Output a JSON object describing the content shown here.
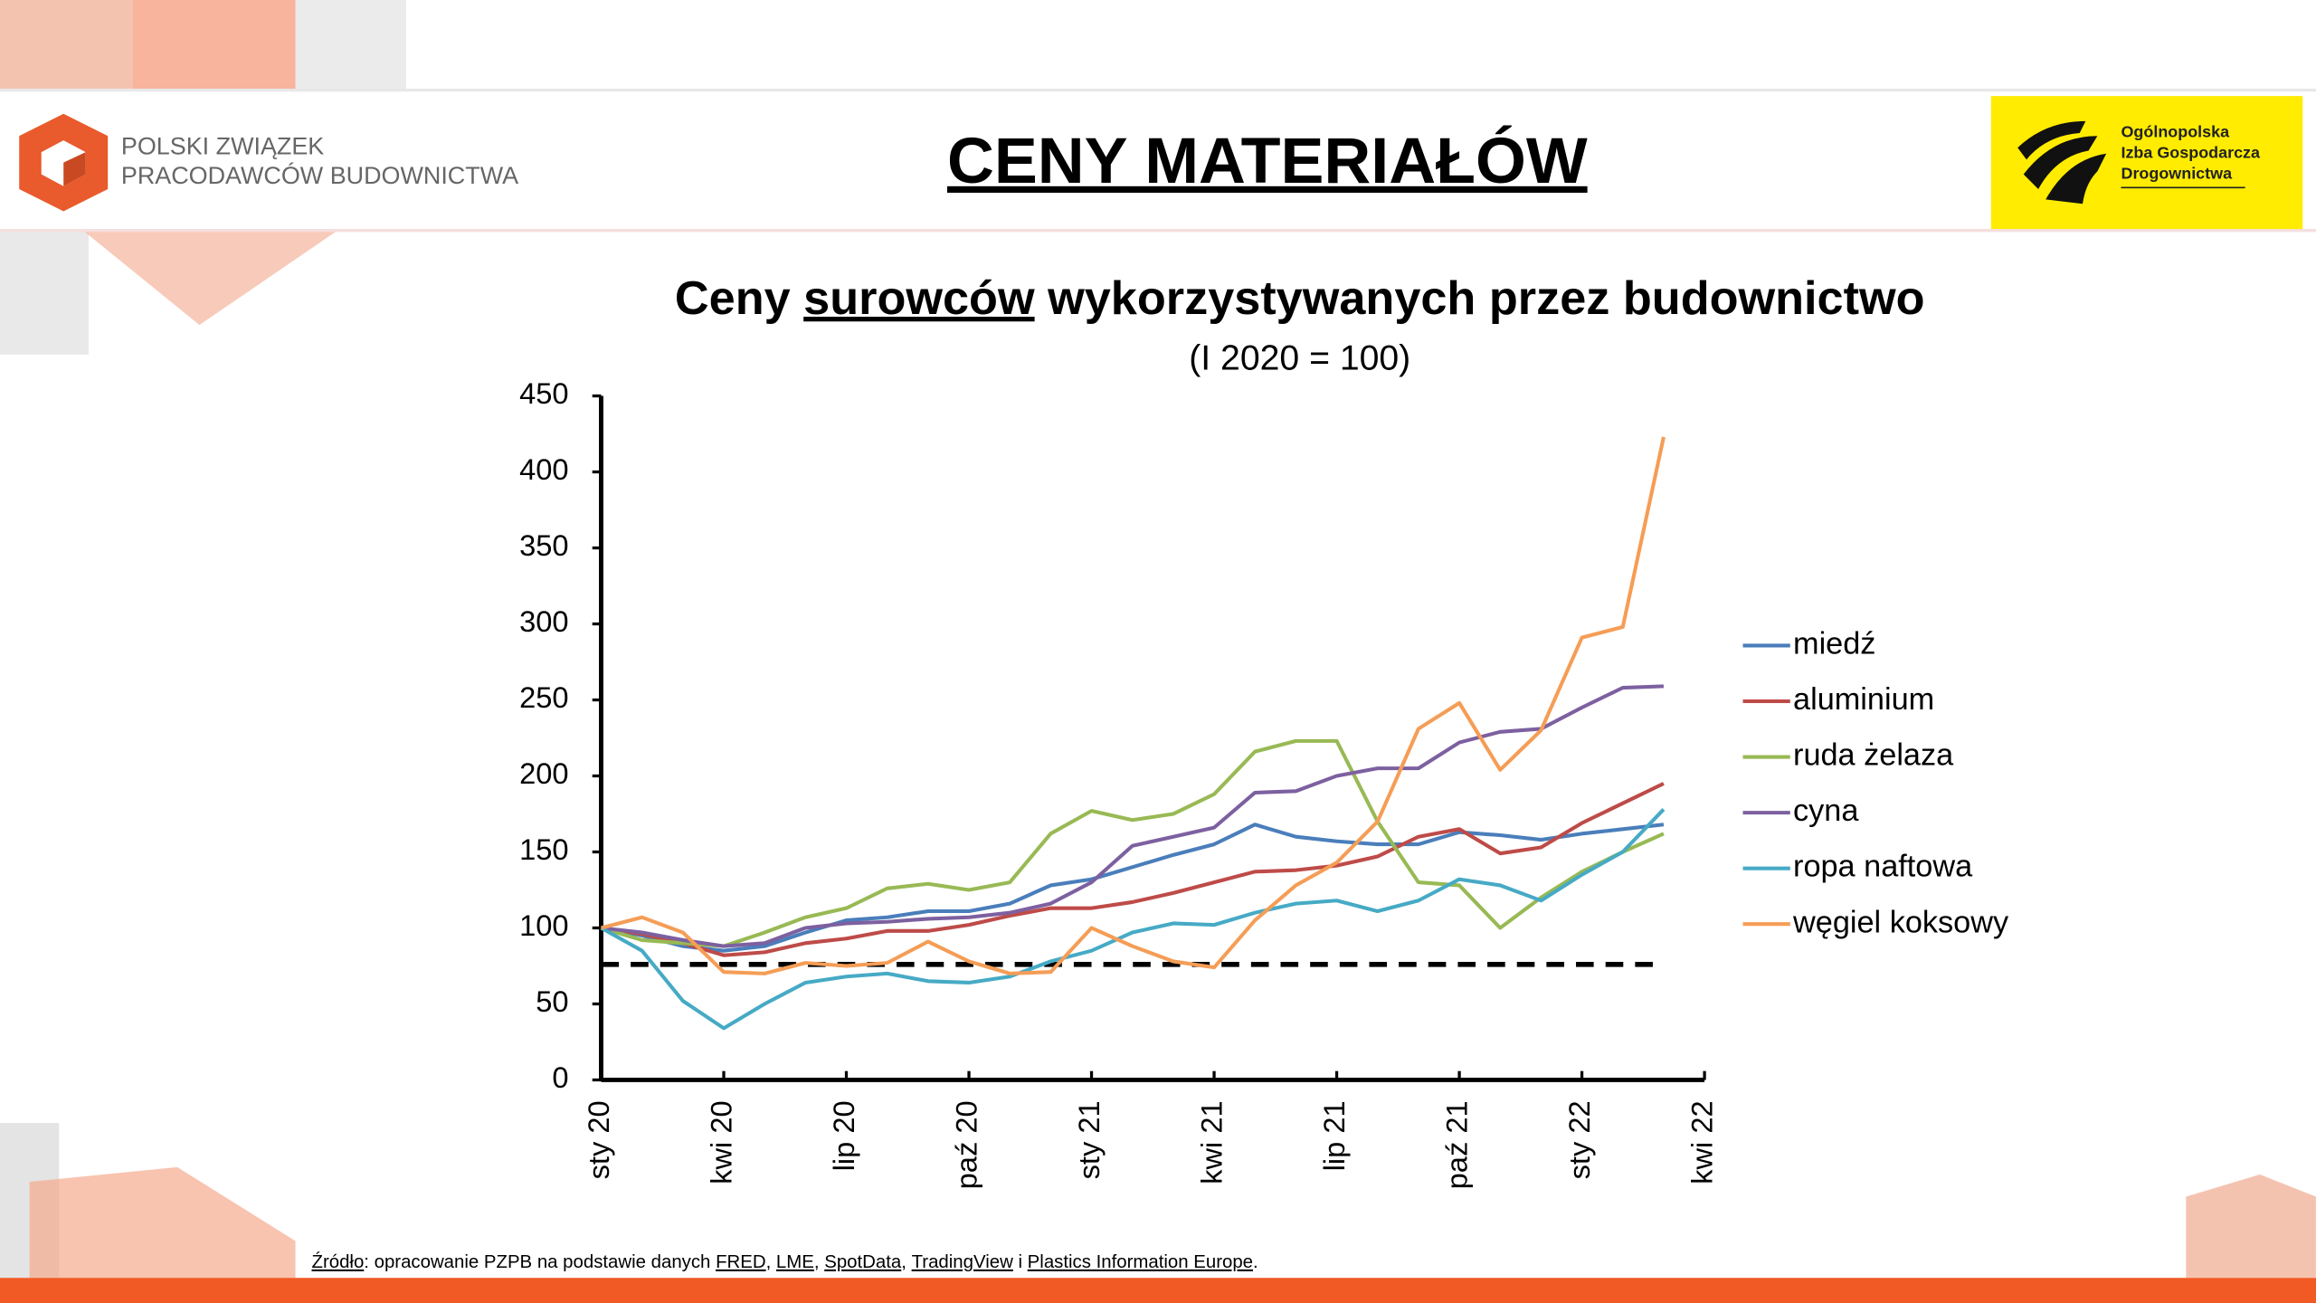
{
  "header": {
    "title": "CENY MATERIAŁÓW",
    "logo_left": [
      "POLSKI ZWIĄZEK",
      "PRACODAWCÓW BUDOWNICTWA"
    ],
    "logo_right": [
      "Ogólnopolska",
      "Izba Gospodarcza",
      "Drogownictwa"
    ]
  },
  "chart_data": {
    "type": "line",
    "title_before": "Ceny",
    "title_underlined": "surowców",
    "title_after": "wykorzystywanych przez budownictwo",
    "subtitle": "(I 2020 = 100)",
    "x": [
      0,
      1,
      2,
      3,
      4,
      5,
      6,
      7,
      8,
      9,
      10,
      11,
      12,
      13,
      14,
      15,
      16,
      17,
      18,
      19,
      20,
      21,
      22,
      23,
      24,
      25,
      26
    ],
    "xlim": [
      0,
      27
    ],
    "xticks": [
      {
        "value": 0,
        "label": "sty 20"
      },
      {
        "value": 3,
        "label": "kwi 20"
      },
      {
        "value": 6,
        "label": "lip 20"
      },
      {
        "value": 9,
        "label": "paź 20"
      },
      {
        "value": 12,
        "label": "sty 21"
      },
      {
        "value": 15,
        "label": "kwi 21"
      },
      {
        "value": 18,
        "label": "lip 21"
      },
      {
        "value": 21,
        "label": "paź 21"
      },
      {
        "value": 24,
        "label": "sty 22"
      },
      {
        "value": 27,
        "label": "kwi 22"
      }
    ],
    "ylim": [
      0,
      450
    ],
    "yticks": [
      0,
      50,
      100,
      150,
      200,
      250,
      300,
      350,
      400,
      450
    ],
    "reference_value": 76,
    "legend": "right",
    "grid": false,
    "series": [
      {
        "name": "miedź",
        "color": "#4a7ebb",
        "values": [
          100,
          95,
          88,
          85,
          88,
          97,
          105,
          107,
          111,
          111,
          116,
          128,
          132,
          140,
          148,
          155,
          168,
          160,
          157,
          155,
          155,
          163,
          161,
          158,
          162,
          165,
          168
        ]
      },
      {
        "name": "aluminium",
        "color": "#be4b48",
        "values": [
          100,
          96,
          90,
          82,
          84,
          90,
          93,
          98,
          98,
          102,
          108,
          113,
          113,
          117,
          123,
          130,
          137,
          138,
          141,
          147,
          160,
          165,
          149,
          153,
          169,
          182,
          195
        ]
      },
      {
        "name": "ruda żelaza",
        "color": "#98b954",
        "values": [
          100,
          92,
          90,
          88,
          97,
          107,
          113,
          126,
          129,
          125,
          130,
          162,
          177,
          171,
          175,
          188,
          216,
          223,
          223,
          170,
          130,
          128,
          100,
          120,
          137,
          150,
          162
        ]
      },
      {
        "name": "cyna",
        "color": "#7d60a0",
        "values": [
          100,
          97,
          92,
          88,
          90,
          100,
          103,
          104,
          106,
          107,
          110,
          116,
          130,
          154,
          160,
          166,
          189,
          190,
          200,
          205,
          205,
          222,
          229,
          231,
          245,
          258,
          259
        ]
      },
      {
        "name": "ropa naftowa",
        "color": "#46aac5",
        "values": [
          100,
          85,
          52,
          34,
          50,
          64,
          68,
          70,
          65,
          64,
          68,
          78,
          85,
          97,
          103,
          102,
          110,
          116,
          118,
          111,
          118,
          132,
          128,
          118,
          135,
          150,
          178
        ]
      },
      {
        "name": "węgiel koksowy",
        "color": "#f59d56",
        "values": [
          100,
          107,
          97,
          71,
          70,
          77,
          75,
          77,
          91,
          78,
          70,
          71,
          100,
          88,
          78,
          74,
          105,
          128,
          143,
          170,
          231,
          248,
          204,
          230,
          291,
          298,
          423
        ]
      }
    ]
  },
  "source": [
    {
      "text": "Źródło",
      "underline": true
    },
    {
      "text": ": opracowanie PZPB na podstawie danych ",
      "underline": false
    },
    {
      "text": "FRED",
      "underline": true
    },
    {
      "text": ", ",
      "underline": false
    },
    {
      "text": "LME",
      "underline": true
    },
    {
      "text": ", ",
      "underline": false
    },
    {
      "text": "SpotData",
      "underline": true
    },
    {
      "text": ", ",
      "underline": false
    },
    {
      "text": "TradingView",
      "underline": true
    },
    {
      "text": " i ",
      "underline": false
    },
    {
      "text": "Plastics Information Europe",
      "underline": true
    },
    {
      "text": ".",
      "underline": false
    }
  ]
}
